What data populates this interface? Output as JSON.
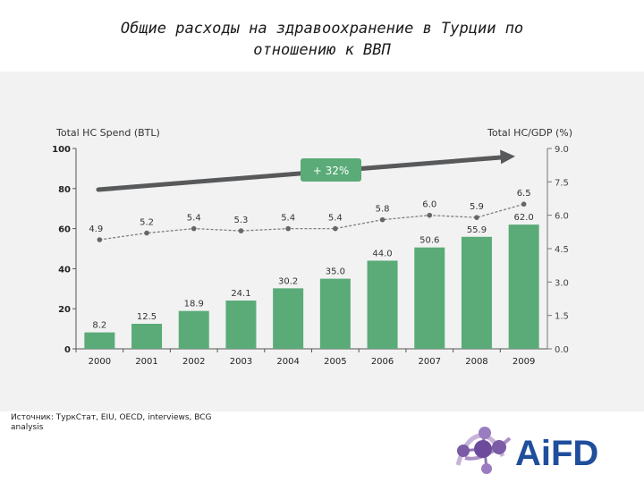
{
  "title": {
    "line1": "Общие расходы на здравоохранение в Турции по",
    "line2": "отношению к ВВП"
  },
  "source": {
    "text": "Источник: ТуркСтат, EIU, OECD, interviews, BCG analysis"
  },
  "logo": {
    "text": "AiFD"
  },
  "colors": {
    "bar": "#5aab78",
    "line": "#7f7f7f",
    "arrow": "#58595b",
    "badge": "#5aab78",
    "panel": "#f2f2f2"
  },
  "chart_data": {
    "type": "bar",
    "categories": [
      "2000",
      "2001",
      "2002",
      "2003",
      "2004",
      "2005",
      "2006",
      "2007",
      "2008",
      "2009"
    ],
    "series": [
      {
        "values": [
          8.2,
          12.5,
          18.9,
          24.1,
          30.2,
          35.0,
          44.0,
          50.6,
          55.9,
          62.0
        ],
        "labels": [
          "8.2",
          "12.5",
          "18.9",
          "24.1",
          "30.2",
          "35.0",
          "44.0",
          "50.6",
          "55.9",
          "62.0"
        ]
      },
      {
        "values": [
          4.9,
          5.2,
          5.4,
          5.3,
          5.4,
          5.4,
          5.8,
          6.0,
          5.9,
          6.5
        ],
        "labels": [
          "4.9",
          "5.2",
          "5.4",
          "5.3",
          "5.4",
          "5.4",
          "5.8",
          "6.0",
          "5.9",
          "6.5"
        ]
      }
    ],
    "ylabel": "Total HC Spend (BTL)",
    "y2label": "Total HC/GDP (%)",
    "ylim": [
      0,
      100
    ],
    "y2lim": [
      0,
      9
    ],
    "yticks": [
      "0",
      "20",
      "40",
      "60",
      "80",
      "100"
    ],
    "y2ticks": [
      "0.0",
      "1.5",
      "3.0",
      "4.5",
      "6.0",
      "7.5",
      "9.0"
    ],
    "annotation": "+ 32%"
  }
}
